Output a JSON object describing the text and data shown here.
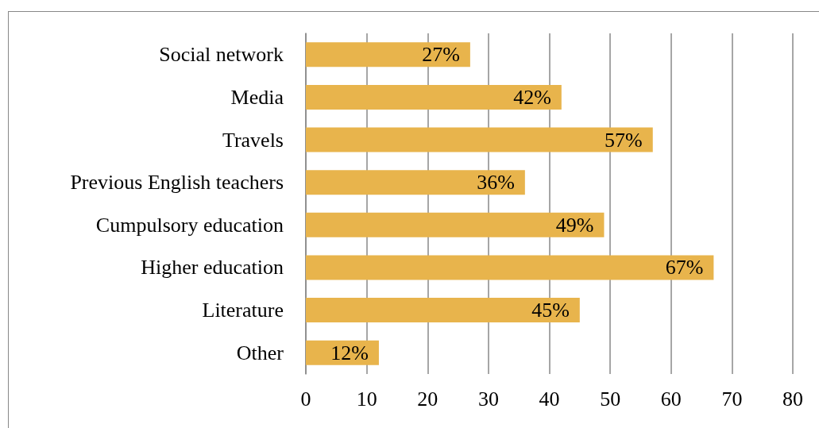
{
  "chart_data": {
    "type": "bar",
    "orientation": "horizontal",
    "categories": [
      "Social network",
      "Media",
      "Travels",
      "Previous English teachers",
      "Cumpulsory education",
      "Higher education",
      "Literature",
      "Other"
    ],
    "values": [
      27,
      42,
      57,
      36,
      49,
      67,
      45,
      12
    ],
    "value_labels": [
      "27%",
      "42%",
      "57%",
      "36%",
      "49%",
      "67%",
      "45%",
      "12%"
    ],
    "color": "#e8b44c",
    "xlim": [
      0,
      80
    ],
    "xticks": [
      0,
      10,
      20,
      30,
      40,
      50,
      60,
      70,
      80
    ],
    "grid": "x"
  }
}
